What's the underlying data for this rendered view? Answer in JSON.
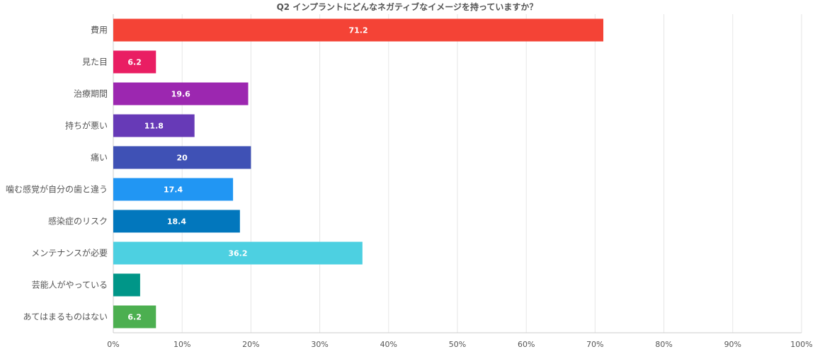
{
  "chart_data": {
    "type": "bar",
    "orientation": "horizontal",
    "title": "Q2 インプラントにどんなネガティブなイメージを持っていますか？",
    "xlabel": "",
    "ylabel": "",
    "xlim": [
      0,
      100
    ],
    "ticks": [
      "0%",
      "10%",
      "20%",
      "30%",
      "40%",
      "50%",
      "60%",
      "70%",
      "80%",
      "90%",
      "100%"
    ],
    "grid": true,
    "categories": [
      "費用",
      "見た目",
      "治療期間",
      "持ちが悪い",
      "痛い",
      "噛む感覚が自分の歯と違う",
      "感染症のリスク",
      "メンテナンスが必要",
      "芸能人がやっている",
      "あてはまるものはない"
    ],
    "values": [
      71.2,
      6.2,
      19.6,
      11.8,
      20,
      17.4,
      18.4,
      36.2,
      3.9,
      6.2
    ],
    "data_labels": [
      "71.2",
      "6.2",
      "19.6",
      "11.8",
      "20",
      "17.4",
      "18.4",
      "36.2",
      "",
      "6.2"
    ],
    "colors": [
      "#f44336",
      "#e91e63",
      "#9c27b0",
      "#673ab7",
      "#3f51b5",
      "#2196f3",
      "#0277bd",
      "#4dd0e1",
      "#009688",
      "#4caf50"
    ]
  }
}
